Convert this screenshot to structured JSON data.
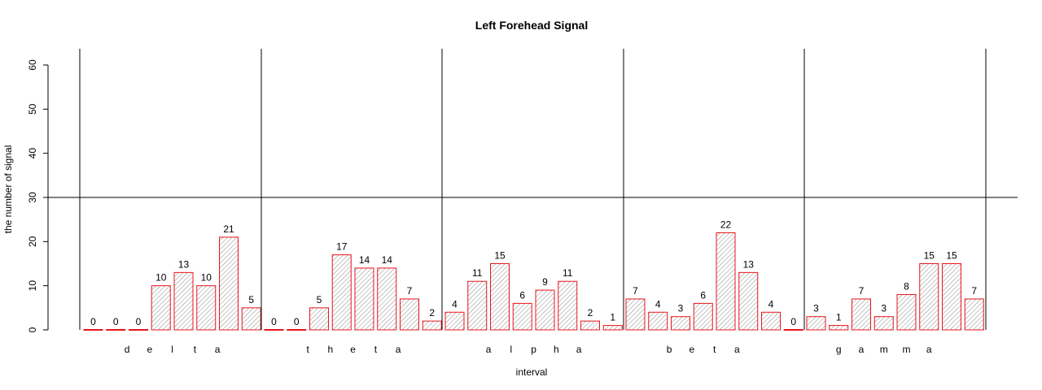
{
  "chart_data": {
    "type": "bar",
    "title": "Left Forehead Signal",
    "xlabel": "interval",
    "ylabel": "the number of signal",
    "ylim": [
      0,
      60
    ],
    "yticks": [
      0,
      10,
      20,
      30,
      40,
      50,
      60
    ],
    "reference_line_y": 30,
    "values": [
      0,
      0,
      0,
      10,
      13,
      10,
      21,
      5,
      0,
      0,
      5,
      17,
      14,
      14,
      7,
      2,
      4,
      11,
      15,
      6,
      9,
      11,
      2,
      1,
      7,
      4,
      3,
      6,
      22,
      13,
      4,
      0,
      3,
      1,
      7,
      3,
      8,
      15,
      15,
      7
    ],
    "groups": [
      {
        "name": "delta",
        "letters": [
          "d",
          "e",
          "l",
          "t",
          "a"
        ]
      },
      {
        "name": "theta",
        "letters": [
          "t",
          "h",
          "e",
          "t",
          "a"
        ]
      },
      {
        "name": "alpha",
        "letters": [
          "a",
          "l",
          "p",
          "h",
          "a"
        ]
      },
      {
        "name": "beta",
        "letters": [
          "b",
          "e",
          "t",
          "a"
        ]
      },
      {
        "name": "gamma",
        "letters": [
          "g",
          "a",
          "m",
          "m",
          "a"
        ]
      }
    ],
    "bar_border_color": "#e8141c",
    "hatch_color": "#8a8a8a",
    "grid": false,
    "legend": "none"
  }
}
